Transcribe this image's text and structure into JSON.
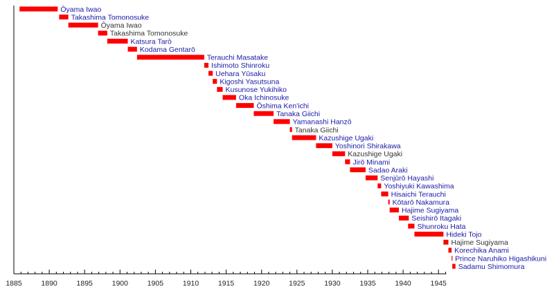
{
  "chart_data": {
    "type": "bar",
    "orientation": "horizontal-timeline",
    "title": "",
    "xlabel": "",
    "ylabel": "",
    "xlim": [
      1885,
      1946.1
    ],
    "x_ticks": [
      1885,
      1890,
      1895,
      1900,
      1905,
      1910,
      1915,
      1920,
      1925,
      1930,
      1935,
      1940,
      1945
    ],
    "grid": false,
    "colors": {
      "bar": "#ff0000",
      "first_term_label": "#1a1aa6",
      "repeat_term_label": "#333333",
      "axis": "#000000"
    },
    "rows": [
      {
        "name": "Ōyama Iwao",
        "start": 1885.8,
        "end": 1891.2,
        "repeat": false
      },
      {
        "name": "Takashima Tomonosuke",
        "start": 1891.4,
        "end": 1892.7,
        "repeat": false
      },
      {
        "name": "Ōyama Iwao",
        "start": 1892.7,
        "end": 1896.9,
        "repeat": true
      },
      {
        "name": "Takashima Tomonosuke",
        "start": 1896.9,
        "end": 1898.2,
        "repeat": true
      },
      {
        "name": "Katsura Tarō",
        "start": 1898.2,
        "end": 1901.1,
        "repeat": false
      },
      {
        "name": "Kodama Gentarō",
        "start": 1901.1,
        "end": 1902.4,
        "repeat": false
      },
      {
        "name": "Terauchi Masatake",
        "start": 1902.4,
        "end": 1911.9,
        "repeat": false
      },
      {
        "name": "Ishimoto Shinroku",
        "start": 1911.9,
        "end": 1912.5,
        "repeat": false
      },
      {
        "name": "Uehara Yūsaku",
        "start": 1912.5,
        "end": 1913.1,
        "repeat": false
      },
      {
        "name": "Kigoshi Yasutsuna",
        "start": 1913.1,
        "end": 1913.7,
        "repeat": false
      },
      {
        "name": "Kusunose Yukihiko",
        "start": 1913.7,
        "end": 1914.5,
        "repeat": false
      },
      {
        "name": "Oka Ichinosuke",
        "start": 1914.5,
        "end": 1916.4,
        "repeat": false
      },
      {
        "name": "Ōshima Ken'ichi",
        "start": 1916.4,
        "end": 1918.9,
        "repeat": false
      },
      {
        "name": "Tanaka Giichi",
        "start": 1918.9,
        "end": 1921.7,
        "repeat": false
      },
      {
        "name": "Yamanashi Hanzō",
        "start": 1921.7,
        "end": 1924.0,
        "repeat": false
      },
      {
        "name": "Tanaka Giichi",
        "start": 1924.0,
        "end": 1924.3,
        "repeat": true
      },
      {
        "name": "Kazushige Ugaki",
        "start": 1924.3,
        "end": 1927.7,
        "repeat": false
      },
      {
        "name": "Yoshinori Shirakawa",
        "start": 1927.7,
        "end": 1930.0,
        "repeat": false
      },
      {
        "name": "Kazushige Ugaki",
        "start": 1930.0,
        "end": 1931.8,
        "repeat": true
      },
      {
        "name": "Jirō Minami",
        "start": 1931.8,
        "end": 1932.5,
        "repeat": false
      },
      {
        "name": "Sadao Araki",
        "start": 1932.5,
        "end": 1934.7,
        "repeat": false
      },
      {
        "name": "Senjūrō Hayashi",
        "start": 1934.7,
        "end": 1936.4,
        "repeat": false
      },
      {
        "name": "Yoshiyuki Kawashima",
        "start": 1936.4,
        "end": 1936.9,
        "repeat": false
      },
      {
        "name": "Hisaichi Terauchi",
        "start": 1936.9,
        "end": 1937.9,
        "repeat": false
      },
      {
        "name": "Kōtarō Nakamura",
        "start": 1937.9,
        "end": 1938.1,
        "repeat": false
      },
      {
        "name": "Hajime Sugiyama",
        "start": 1938.1,
        "end": 1939.4,
        "repeat": false
      },
      {
        "name": "Seishirō Itagaki",
        "start": 1939.4,
        "end": 1940.8,
        "repeat": false
      },
      {
        "name": "Shunroku Hata",
        "start": 1940.7,
        "end": 1941.6,
        "repeat": false
      },
      {
        "name": "Hideki Tojo",
        "start": 1941.6,
        "end": 1945.7,
        "repeat": false
      },
      {
        "name": "Hajime Sugiyama",
        "start": 1945.7,
        "end": 1946.4,
        "repeat": true
      },
      {
        "name": "Korechika Anami",
        "start": 1946.4,
        "end": 1946.85,
        "repeat": false
      },
      {
        "name": "Prince Naruhiko Higashikuni",
        "start": 1946.85,
        "end": 1946.95,
        "repeat": false
      },
      {
        "name": "Sadamu Shimomura",
        "start": 1946.95,
        "end": 1947.4,
        "repeat": false
      }
    ]
  }
}
